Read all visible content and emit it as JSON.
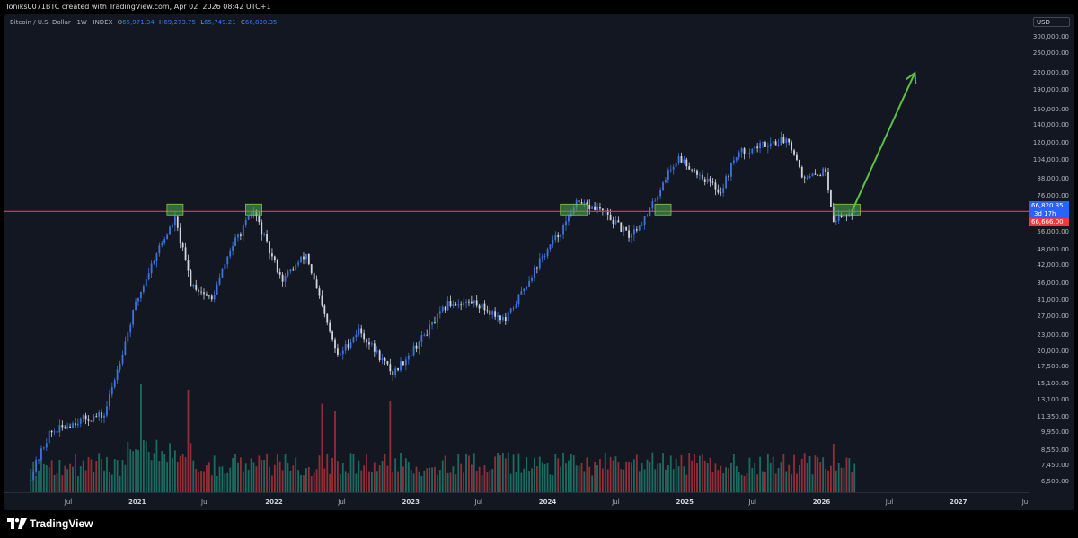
{
  "header": {
    "attribution": "Toniks0071BTC created with TradingView.com, Apr 02, 2026 08:42 UTC+1"
  },
  "legend": {
    "symbol": "Bitcoin / U.S. Dollar · 1W · INDEX",
    "o_label": "O",
    "o_value": "65,971.34",
    "h_label": "H",
    "h_value": "69,273.75",
    "l_label": "L",
    "l_value": "65,749.21",
    "c_label": "C",
    "c_value": "66,820.35"
  },
  "price_axis": {
    "currency": "USD",
    "last_price": "66,820.35",
    "countdown": "3d 17h",
    "level_label": "66,666.00"
  },
  "brand": {
    "name": "TradingView"
  },
  "colors": {
    "background": "#131722",
    "up": "#3f73d9",
    "down": "#d1d4dc",
    "level_line": "#f23645",
    "arrow": "#5fbf44",
    "vol_up": "#1f7a6b",
    "vol_down": "#a8333b"
  },
  "chart_data": {
    "type": "candlestick",
    "title": "Bitcoin / U.S. Dollar · 1W · INDEX",
    "y_scale": "log",
    "y_ticks": [
      "300,000.00",
      "260,000.00",
      "220,000.00",
      "190,000.00",
      "160,000.00",
      "140,000.00",
      "120,000.00",
      "104,000.00",
      "88,000.00",
      "76,000.00",
      "66,000.00",
      "56,000.00",
      "48,000.00",
      "42,000.00",
      "36,000.00",
      "31,000.00",
      "27,000.00",
      "23,000.00",
      "20,000.00",
      "17,500.00",
      "15,100.00",
      "13,100.00",
      "11,350.00",
      "9,950.00",
      "8,550.00",
      "7,450.00",
      "6,500.00"
    ],
    "x_ticks": [
      {
        "label": "Jul",
        "year": false
      },
      {
        "label": "2021",
        "year": true
      },
      {
        "label": "Jul",
        "year": false
      },
      {
        "label": "2022",
        "year": true
      },
      {
        "label": "Jul",
        "year": false
      },
      {
        "label": "2023",
        "year": true
      },
      {
        "label": "Jul",
        "year": false
      },
      {
        "label": "2024",
        "year": true
      },
      {
        "label": "Jul",
        "year": false
      },
      {
        "label": "2025",
        "year": true
      },
      {
        "label": "Jul",
        "year": false
      },
      {
        "label": "2026",
        "year": true
      },
      {
        "label": "Jul",
        "year": false
      },
      {
        "label": "2027",
        "year": true
      },
      {
        "label": "Ju",
        "year": false
      }
    ],
    "horizontal_level": 66666,
    "last_close": 66820.35,
    "ohlc_last": {
      "open": 65971.34,
      "high": 69273.75,
      "low": 65749.21,
      "close": 66820.35
    },
    "price_path": [
      {
        "date": "2020-03-16",
        "price": 6500
      },
      {
        "date": "2020-05-11",
        "price": 9800
      },
      {
        "date": "2020-07-27",
        "price": 11000
      },
      {
        "date": "2020-10-05",
        "price": 11500
      },
      {
        "date": "2020-11-16",
        "price": 18500
      },
      {
        "date": "2020-12-28",
        "price": 30000
      },
      {
        "date": "2021-02-22",
        "price": 47000
      },
      {
        "date": "2021-04-12",
        "price": 62000
      },
      {
        "date": "2021-05-24",
        "price": 36000
      },
      {
        "date": "2021-07-19",
        "price": 31000
      },
      {
        "date": "2021-09-06",
        "price": 48000
      },
      {
        "date": "2021-11-08",
        "price": 67000
      },
      {
        "date": "2021-12-20",
        "price": 47000
      },
      {
        "date": "2022-01-24",
        "price": 37000
      },
      {
        "date": "2022-03-28",
        "price": 46000
      },
      {
        "date": "2022-05-09",
        "price": 29000
      },
      {
        "date": "2022-06-20",
        "price": 19000
      },
      {
        "date": "2022-08-15",
        "price": 24000
      },
      {
        "date": "2022-11-14",
        "price": 16500
      },
      {
        "date": "2023-01-16",
        "price": 21000
      },
      {
        "date": "2023-04-10",
        "price": 30000
      },
      {
        "date": "2023-06-19",
        "price": 30500
      },
      {
        "date": "2023-09-11",
        "price": 26000
      },
      {
        "date": "2023-12-04",
        "price": 42000
      },
      {
        "date": "2024-02-26",
        "price": 62000
      },
      {
        "date": "2024-03-11",
        "price": 71000
      },
      {
        "date": "2024-05-20",
        "price": 68000
      },
      {
        "date": "2024-08-05",
        "price": 54000
      },
      {
        "date": "2024-09-23",
        "price": 64000
      },
      {
        "date": "2024-11-11",
        "price": 90000
      },
      {
        "date": "2024-12-16",
        "price": 106000
      },
      {
        "date": "2025-04-07",
        "price": 79000
      },
      {
        "date": "2025-05-19",
        "price": 109000
      },
      {
        "date": "2025-08-11",
        "price": 120000
      },
      {
        "date": "2025-10-06",
        "price": 124000
      },
      {
        "date": "2025-11-17",
        "price": 87000
      },
      {
        "date": "2026-01-12",
        "price": 95000
      },
      {
        "date": "2026-02-02",
        "price": 62000
      },
      {
        "date": "2026-03-30",
        "price": 66820
      }
    ],
    "volume_spikes": [
      {
        "date": "2021-01-11",
        "relative": 1.0
      },
      {
        "date": "2021-05-17",
        "relative": 0.95
      },
      {
        "date": "2022-05-09",
        "relative": 0.82
      },
      {
        "date": "2022-06-13",
        "relative": 0.75
      },
      {
        "date": "2022-11-07",
        "relative": 0.85
      },
      {
        "date": "2026-02-02",
        "relative": 0.45
      }
    ],
    "marked_touches": [
      "2021-04-12",
      "2021-11-08",
      "2024-03-11",
      "2024-11-04",
      "2026-03-09"
    ],
    "projection": {
      "from_date": "2026-03-23",
      "from_price": 66666,
      "to_date": "2026-09-07",
      "to_price": 220000
    }
  }
}
